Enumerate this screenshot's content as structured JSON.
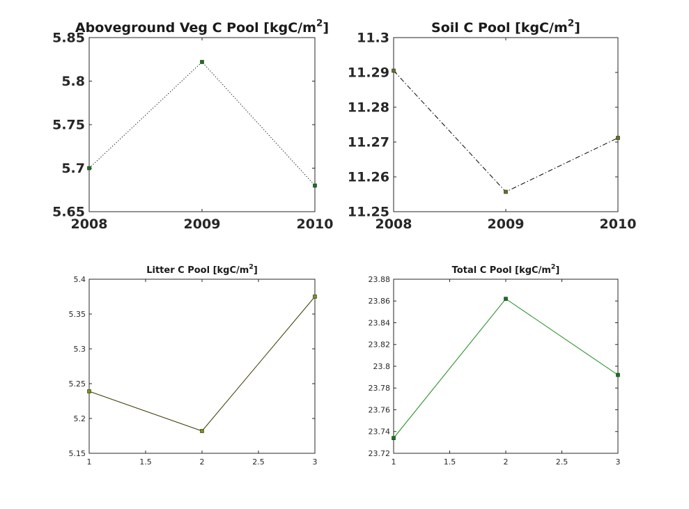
{
  "chart_data": [
    {
      "type": "line",
      "title": "Aboveground Veg C Pool [kgC/m",
      "title_sup": "2",
      "title_end": "]",
      "x": [
        2008,
        2009,
        2010
      ],
      "x_tick_labels": [
        "2008",
        "2009",
        "2010"
      ],
      "xlim": [
        2008,
        2010
      ],
      "y": [
        5.7,
        5.822,
        5.68
      ],
      "ylim": [
        5.65,
        5.85
      ],
      "y_tick_labels": [
        "5.65",
        "5.7",
        "5.75",
        "5.8",
        "5.85"
      ],
      "line_style": "dotted",
      "line_color": "#000000",
      "marker_color": "#1f6e1f"
    },
    {
      "type": "line",
      "title": "Soil C Pool [kgC/m",
      "title_sup": "2",
      "title_end": "]",
      "x": [
        2008,
        2009,
        2010
      ],
      "x_tick_labels": [
        "2008",
        "2009",
        "2010"
      ],
      "xlim": [
        2008,
        2010
      ],
      "y": [
        11.2905,
        11.2557,
        11.2712
      ],
      "ylim": [
        11.25,
        11.3
      ],
      "y_tick_labels": [
        "11.25",
        "11.26",
        "11.27",
        "11.28",
        "11.29",
        "11.3"
      ],
      "line_style": "dashdot",
      "line_color": "#000000",
      "marker_color": "#6b6b2a"
    },
    {
      "type": "line",
      "title": "Litter C Pool [kgC/m",
      "title_sup": "2",
      "title_end": "]",
      "x": [
        1,
        2,
        3
      ],
      "x_tick_labels": [
        "1",
        "1.5",
        "2",
        "2.5",
        "3"
      ],
      "xlim": [
        1,
        3
      ],
      "y": [
        5.239,
        5.182,
        5.375
      ],
      "ylim": [
        5.15,
        5.4
      ],
      "y_tick_labels": [
        "5.15",
        "5.2",
        "5.25",
        "5.3",
        "5.35",
        "5.4"
      ],
      "line_style": "solid",
      "line_color": "#3b3b00",
      "marker_color": "#8a8a1a"
    },
    {
      "type": "line",
      "title": "Total C Pool [kgC/m",
      "title_sup": "2",
      "title_end": "]",
      "x": [
        1,
        2,
        3
      ],
      "x_tick_labels": [
        "1",
        "1.5",
        "2",
        "2.5",
        "3"
      ],
      "xlim": [
        1,
        3
      ],
      "y": [
        23.734,
        23.862,
        23.792
      ],
      "ylim": [
        23.72,
        23.88
      ],
      "y_tick_labels": [
        "23.72",
        "23.74",
        "23.76",
        "23.78",
        "23.8",
        "23.82",
        "23.84",
        "23.86",
        "23.88"
      ],
      "line_style": "solid",
      "line_color": "#1a8a1a",
      "marker_color": "#1f6e1f"
    }
  ]
}
